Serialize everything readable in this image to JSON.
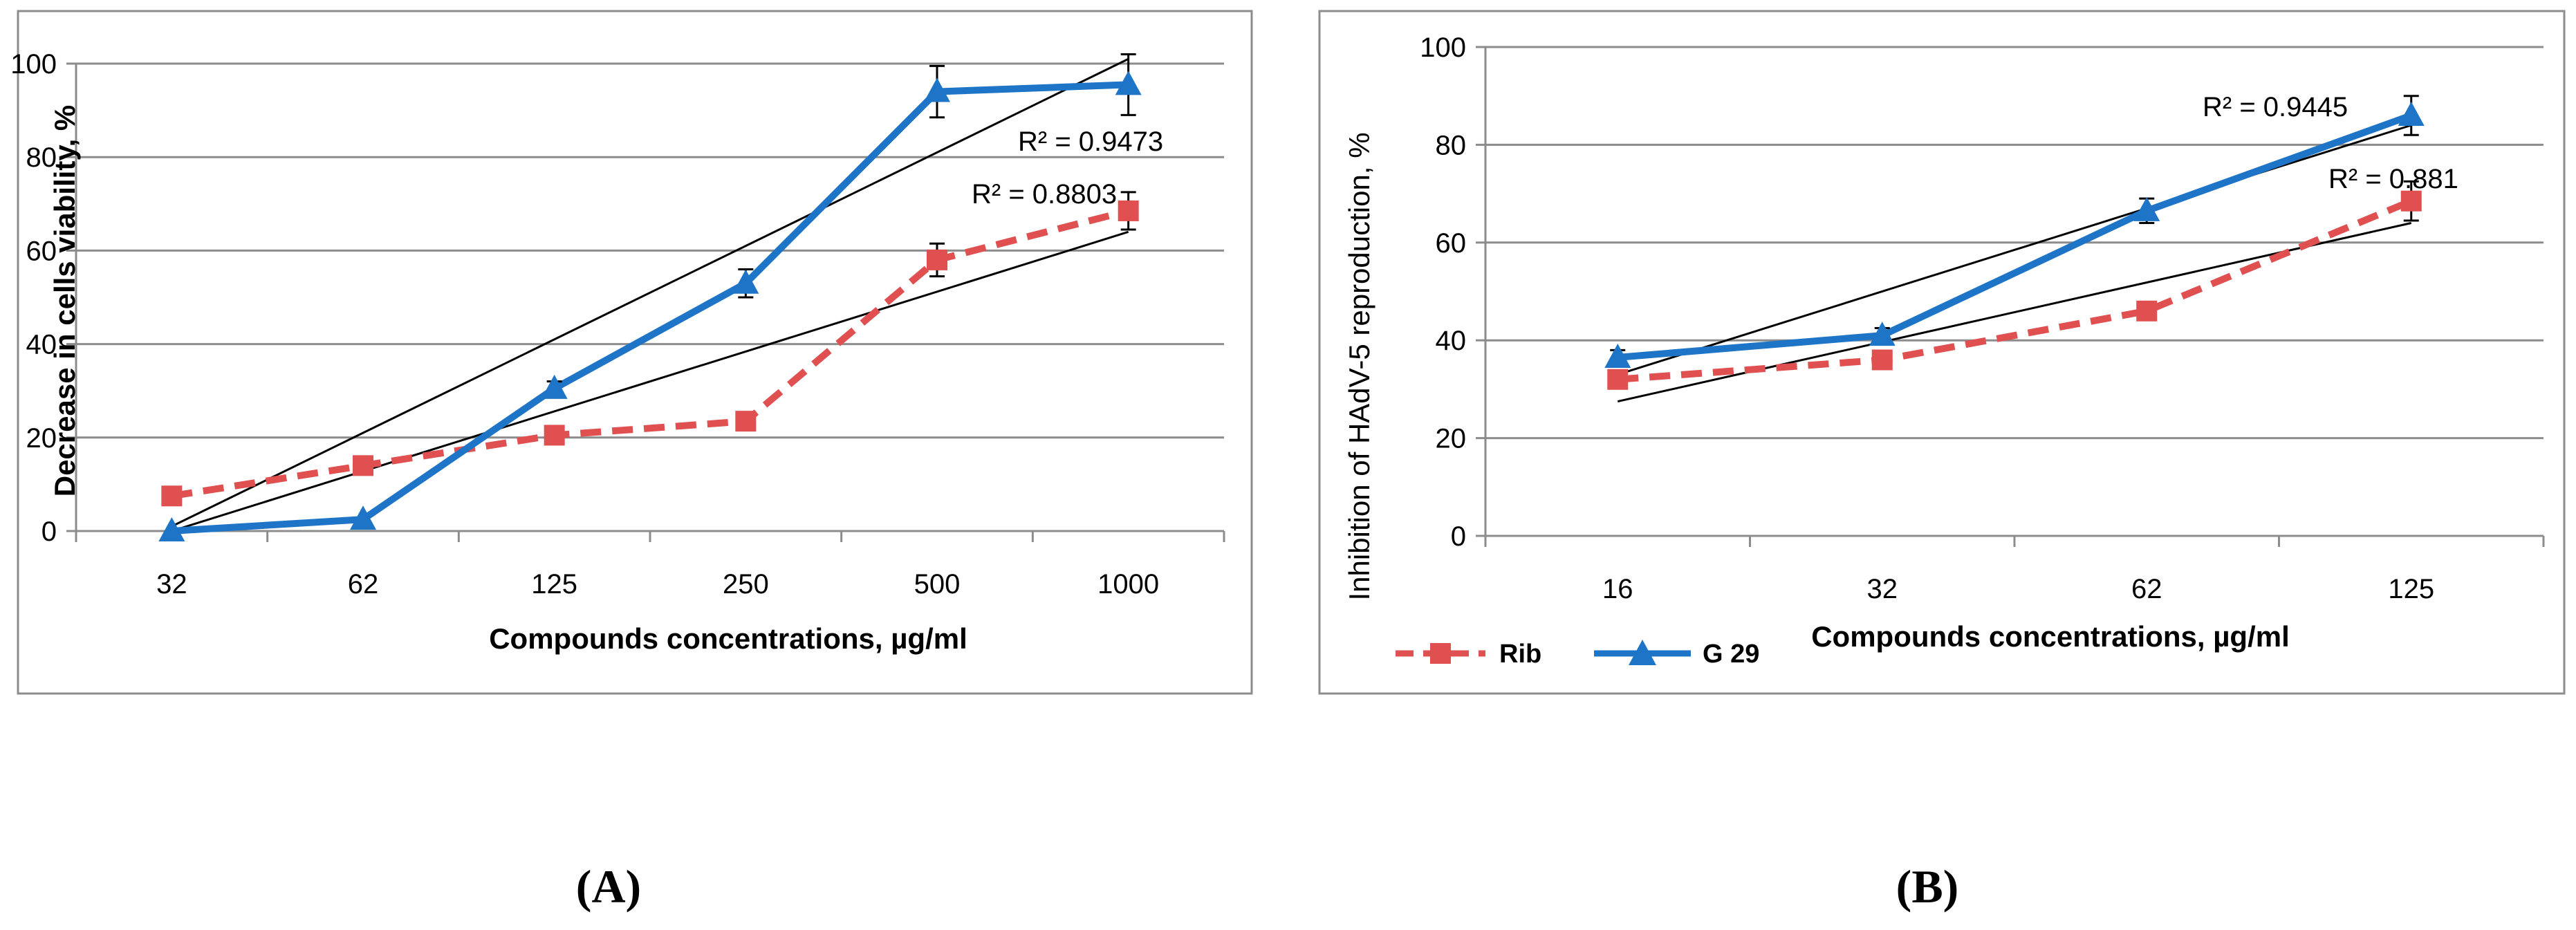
{
  "chart_data": [
    {
      "type": "line",
      "panel_label": "(A)",
      "categories": [
        "32",
        "62",
        "125",
        "250",
        "500",
        "1000"
      ],
      "xlabel": "Compounds concentrations,  µg/ml",
      "ylabel": "Decrease in cells viability,  %",
      "ylim": [
        0,
        100
      ],
      "yticks": [
        0,
        20,
        40,
        60,
        80,
        100
      ],
      "grid": true,
      "series": [
        {
          "name": "Rib",
          "color": "#e05050",
          "style": "dashed",
          "marker": "square",
          "values": [
            7.5,
            14,
            20.5,
            23.5,
            58,
            68.5
          ],
          "errors": [
            0,
            0,
            0,
            0,
            3.5,
            4
          ]
        },
        {
          "name": "G 29",
          "color": "#1e74c6",
          "style": "solid",
          "marker": "triangle",
          "values": [
            0,
            2.5,
            30.5,
            53,
            94,
            95.5
          ],
          "errors": [
            0,
            0,
            1.5,
            3,
            5.5,
            6.5
          ]
        }
      ],
      "trendlines": [
        {
          "label": "R² = 0.9473",
          "start": 1,
          "end": 101
        },
        {
          "label": "R² = 0.8803",
          "start": 0,
          "end": 64
        }
      ]
    },
    {
      "type": "line",
      "panel_label": "(B)",
      "categories": [
        "16",
        "32",
        "62",
        "125"
      ],
      "xlabel": "Compounds concentrations,  µg/ml",
      "ylabel": "Inhibition of HAdV-5 reproduction, %",
      "ylim": [
        0,
        100
      ],
      "yticks": [
        0,
        20,
        40,
        60,
        80,
        100
      ],
      "grid": true,
      "series": [
        {
          "name": "Rib",
          "color": "#e05050",
          "style": "dashed",
          "marker": "square",
          "values": [
            32,
            36,
            46,
            68.5
          ],
          "errors": [
            0,
            0,
            0,
            4
          ]
        },
        {
          "name": "G 29",
          "color": "#1e74c6",
          "style": "solid",
          "marker": "triangle",
          "values": [
            36.5,
            41,
            66.5,
            86
          ],
          "errors": [
            1.5,
            1.5,
            2.5,
            4
          ]
        }
      ],
      "trendlines": [
        {
          "label": "R² = 0.9445",
          "start": 33,
          "end": 84
        },
        {
          "label": "R² = 0.881",
          "start": 27.5,
          "end": 64
        }
      ],
      "legend": [
        {
          "label": "Rib",
          "color": "#e05050",
          "style": "dashed",
          "marker": "square"
        },
        {
          "label": "G 29",
          "color": "#1e74c6",
          "style": "solid",
          "marker": "triangle"
        }
      ]
    }
  ]
}
